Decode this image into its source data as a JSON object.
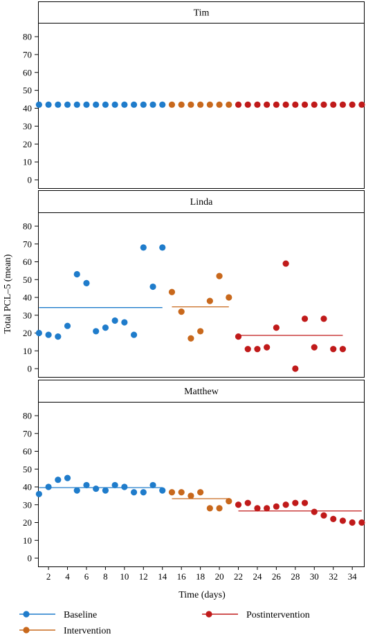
{
  "chart_data": {
    "type": "scatter",
    "ylabel": "Total PCL–5 (mean)",
    "xlabel": "Time (days)",
    "ylim": [
      0,
      80
    ],
    "yticks": [
      0,
      10,
      20,
      30,
      40,
      50,
      60,
      70,
      80
    ],
    "xlim": [
      1,
      35
    ],
    "xticks": [
      2,
      4,
      6,
      8,
      10,
      12,
      14,
      16,
      18,
      20,
      22,
      24,
      26,
      28,
      30,
      32,
      34
    ],
    "phase_colors": {
      "Baseline": "#1f7ccb",
      "Intervention": "#c8681c",
      "Postintervention": "#c01a1a"
    },
    "legend": [
      "Baseline",
      "Intervention",
      "Postintervention"
    ],
    "panels": [
      {
        "participant": "Tim",
        "show_mean_lines": false,
        "phases": [
          {
            "phase": "Baseline",
            "x": [
              1,
              2,
              3,
              4,
              5,
              6,
              7,
              8,
              9,
              10,
              11,
              12,
              13,
              14
            ],
            "y": [
              42,
              42,
              42,
              42,
              42,
              42,
              42,
              42,
              42,
              42,
              42,
              42,
              42,
              42
            ]
          },
          {
            "phase": "Intervention",
            "x": [
              15,
              16,
              17,
              18,
              19,
              20,
              21
            ],
            "y": [
              42,
              42,
              42,
              42,
              42,
              42,
              42
            ]
          },
          {
            "phase": "Postintervention",
            "x": [
              22,
              23,
              24,
              25,
              26,
              27,
              28,
              29,
              30,
              31,
              32,
              33,
              34,
              35
            ],
            "y": [
              42,
              42,
              42,
              42,
              42,
              42,
              42,
              42,
              42,
              42,
              42,
              42,
              42,
              42
            ]
          }
        ]
      },
      {
        "participant": "Linda",
        "show_mean_lines": true,
        "phases": [
          {
            "phase": "Baseline",
            "x": [
              1,
              2,
              3,
              4,
              5,
              6,
              7,
              8,
              9,
              10,
              11,
              12,
              13,
              14
            ],
            "y": [
              20,
              19,
              18,
              24,
              53,
              48,
              21,
              23,
              27,
              26,
              19,
              68,
              46,
              68
            ],
            "mean": 34.3
          },
          {
            "phase": "Intervention",
            "x": [
              15,
              16,
              17,
              18,
              19,
              20,
              21
            ],
            "y": [
              43,
              32,
              17,
              21,
              38,
              52,
              40
            ],
            "mean": 34.7
          },
          {
            "phase": "Postintervention",
            "x": [
              22,
              23,
              24,
              25,
              26,
              27,
              28,
              29,
              30,
              31,
              32,
              33
            ],
            "y": [
              18,
              11,
              11,
              12,
              23,
              59,
              0,
              28,
              12,
              28,
              11,
              11
            ],
            "mean": 18.7
          }
        ]
      },
      {
        "participant": "Matthew",
        "show_mean_lines": true,
        "phases": [
          {
            "phase": "Baseline",
            "x": [
              1,
              2,
              3,
              4,
              5,
              6,
              7,
              8,
              9,
              10,
              11,
              12,
              13,
              14
            ],
            "y": [
              36,
              40,
              44,
              45,
              38,
              41,
              39,
              38,
              41,
              40,
              37,
              37,
              41,
              38
            ],
            "mean": 39.6
          },
          {
            "phase": "Intervention",
            "x": [
              15,
              16,
              17,
              18,
              19,
              20,
              21
            ],
            "y": [
              37,
              37,
              35,
              37,
              28,
              28,
              32
            ],
            "mean": 33.4
          },
          {
            "phase": "Postintervention",
            "x": [
              22,
              23,
              24,
              25,
              26,
              27,
              28,
              29,
              30,
              31,
              32,
              33,
              34,
              35
            ],
            "y": [
              30,
              31,
              28,
              28,
              29,
              30,
              31,
              31,
              26,
              24,
              22,
              21,
              20,
              20
            ],
            "mean": 26.5
          }
        ]
      }
    ]
  }
}
